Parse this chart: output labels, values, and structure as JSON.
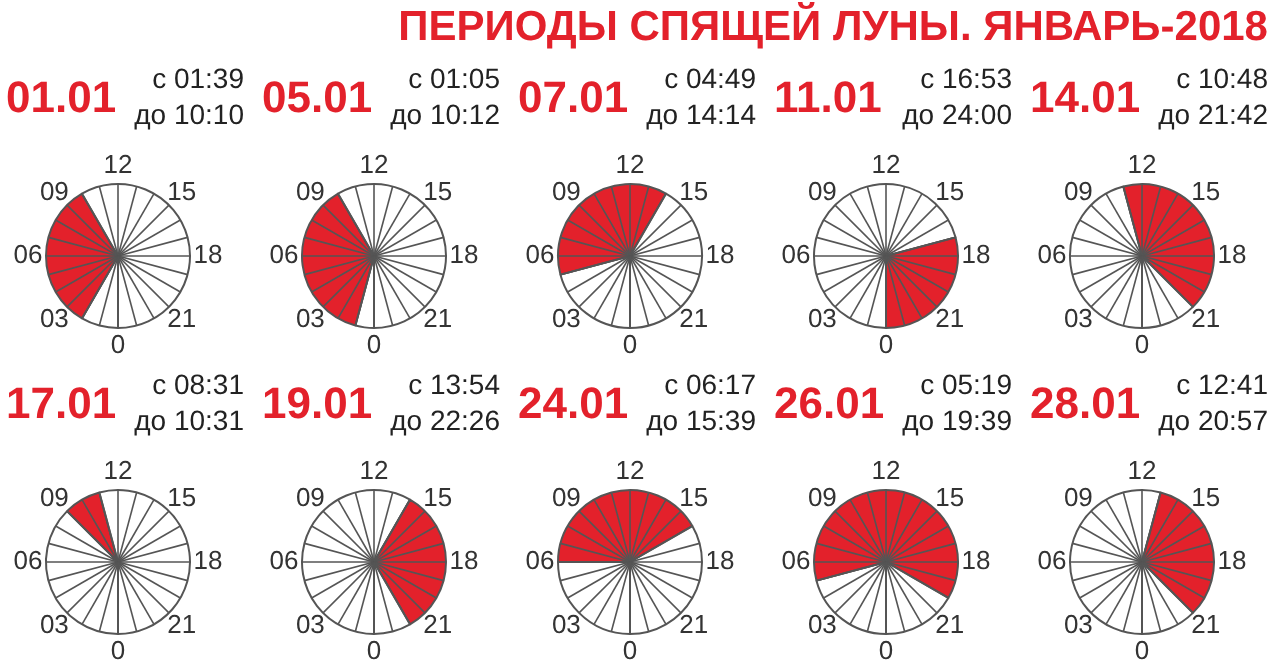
{
  "chart_data": [
    {
      "type": "other",
      "title": "ПЕРИОДЫ СПЯЩЕЙ ЛУНЫ. ЯНВАРЬ-2018"
    },
    {
      "type": "pie",
      "title": "01.01",
      "annotations": [
        "с 01:39",
        "до 10:10",
        "0",
        "03",
        "06",
        "09",
        "12",
        "15",
        "18",
        "21"
      ],
      "grid": true,
      "categories": [
        null,
        null,
        null
      ],
      "values": [
        8.33,
        33.33,
        58.34
      ],
      "colors": [
        "#ffffff",
        "#e3212b",
        "#ffffff"
      ]
    },
    {
      "type": "pie",
      "title": "05.01",
      "annotations": [
        "с 01:05",
        "до 10:12",
        "0",
        "03",
        "06",
        "09",
        "12",
        "15",
        "18",
        "21"
      ],
      "grid": true,
      "categories": [
        null,
        null,
        null
      ],
      "values": [
        4.17,
        37.5,
        58.33
      ],
      "colors": [
        "#ffffff",
        "#e3212b",
        "#ffffff"
      ]
    },
    {
      "type": "pie",
      "title": "07.01",
      "annotations": [
        "с 04:49",
        "до 14:14",
        "0",
        "03",
        "06",
        "09",
        "12",
        "15",
        "18",
        "21"
      ],
      "grid": true,
      "categories": [
        null,
        null,
        null
      ],
      "values": [
        20.83,
        37.5,
        41.67
      ],
      "colors": [
        "#ffffff",
        "#e3212b",
        "#ffffff"
      ]
    },
    {
      "type": "pie",
      "title": "11.01",
      "annotations": [
        "с 16:53",
        "до 24:00",
        "0",
        "03",
        "06",
        "09",
        "12",
        "15",
        "18",
        "21"
      ],
      "grid": true,
      "categories": [
        null,
        null
      ],
      "values": [
        70.83,
        29.17
      ],
      "colors": [
        "#ffffff",
        "#e3212b"
      ]
    },
    {
      "type": "pie",
      "title": "14.01",
      "annotations": [
        "с 10:48",
        "до 21:42",
        "0",
        "03",
        "06",
        "09",
        "12",
        "15",
        "18",
        "21"
      ],
      "grid": true,
      "categories": [
        null,
        null,
        null
      ],
      "values": [
        45.83,
        41.67,
        12.5
      ],
      "colors": [
        "#ffffff",
        "#e3212b",
        "#ffffff"
      ]
    },
    {
      "type": "pie",
      "title": "17.01",
      "annotations": [
        "с 08:31",
        "до 10:31",
        "0",
        "03",
        "06",
        "09",
        "12",
        "15",
        "18",
        "21"
      ],
      "grid": true,
      "categories": [
        null,
        null,
        null
      ],
      "values": [
        37.5,
        8.33,
        54.17
      ],
      "colors": [
        "#ffffff",
        "#e3212b",
        "#ffffff"
      ]
    },
    {
      "type": "pie",
      "title": "19.01",
      "annotations": [
        "с 13:54",
        "до 22:26",
        "0",
        "03",
        "06",
        "09",
        "12",
        "15",
        "18",
        "21"
      ],
      "grid": true,
      "categories": [
        null,
        null,
        null
      ],
      "values": [
        58.33,
        33.33,
        8.34
      ],
      "colors": [
        "#ffffff",
        "#e3212b",
        "#ffffff"
      ]
    },
    {
      "type": "pie",
      "title": "24.01",
      "annotations": [
        "с 06:17",
        "до 15:39",
        "0",
        "03",
        "06",
        "09",
        "12",
        "15",
        "18",
        "21"
      ],
      "grid": true,
      "categories": [
        null,
        null,
        null
      ],
      "values": [
        25,
        41.67,
        33.33
      ],
      "colors": [
        "#ffffff",
        "#e3212b",
        "#ffffff"
      ]
    },
    {
      "type": "pie",
      "title": "26.01",
      "annotations": [
        "с 05:19",
        "до 19:39",
        "0",
        "03",
        "06",
        "09",
        "12",
        "15",
        "18",
        "21"
      ],
      "grid": true,
      "categories": [
        null,
        null,
        null
      ],
      "values": [
        20.83,
        62.5,
        16.67
      ],
      "colors": [
        "#ffffff",
        "#e3212b",
        "#ffffff"
      ]
    },
    {
      "type": "pie",
      "title": "28.01",
      "annotations": [
        "с 12:41",
        "до 20:57",
        "0",
        "03",
        "06",
        "09",
        "12",
        "15",
        "18",
        "21"
      ],
      "grid": true,
      "categories": [
        null,
        null,
        null
      ],
      "values": [
        54.17,
        33.33,
        12.5
      ],
      "colors": [
        "#ffffff",
        "#e3212b",
        "#ffffff"
      ]
    }
  ]
}
